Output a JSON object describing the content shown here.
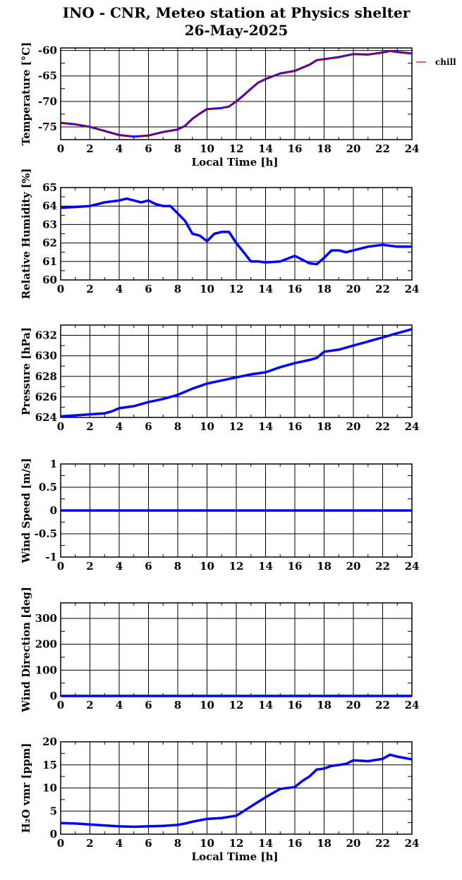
{
  "title_line1": "INO - CNR, Meteo station at Physics shelter",
  "title_line2": "26-May-2025",
  "colors": {
    "series": "#0000ff",
    "chill": "#cc0000",
    "grid": "#000000"
  },
  "chart_data": [
    {
      "id": "temperature",
      "type": "line",
      "ylabel": "Temperature [°C]",
      "xlabel": "Local Time [h]",
      "xlim": [
        0,
        24
      ],
      "ylim": [
        -77.5,
        -59.5
      ],
      "xticks": [
        "0",
        "2",
        "4",
        "6",
        "8",
        "10",
        "12",
        "14",
        "16",
        "18",
        "20",
        "22",
        "24"
      ],
      "yticks": [
        "-60",
        "-65",
        "-70",
        "-75"
      ],
      "ytick_values": [
        -60,
        -65,
        -70,
        -75
      ],
      "grid": true,
      "legend": "outside-right",
      "series": [
        {
          "name": "",
          "color": "#0000ff",
          "x": [
            0,
            1,
            2,
            3,
            4,
            5,
            6,
            7,
            8,
            8.5,
            9,
            9.5,
            10,
            11,
            11.5,
            12,
            12.5,
            13,
            13.5,
            14,
            15,
            16,
            17,
            17.5,
            18,
            19,
            20,
            21,
            22,
            22.5,
            23,
            24
          ],
          "values": [
            -74.2,
            -74.5,
            -75.0,
            -75.8,
            -76.6,
            -76.9,
            -76.7,
            -76.0,
            -75.5,
            -74.8,
            -73.4,
            -72.4,
            -71.5,
            -71.3,
            -71.0,
            -70.0,
            -68.8,
            -67.5,
            -66.3,
            -65.6,
            -64.5,
            -64.0,
            -62.8,
            -61.9,
            -61.7,
            -61.3,
            -60.7,
            -60.8,
            -60.4,
            -60.1,
            -60.3,
            -60.6
          ]
        },
        {
          "name": "chill",
          "color": "#cc0000",
          "x": [
            0,
            1,
            2,
            3,
            4,
            5,
            6,
            7,
            8,
            8.5,
            9,
            9.5,
            10,
            11,
            11.5,
            12,
            12.5,
            13,
            13.5,
            14,
            15,
            16,
            17,
            17.5,
            18,
            19,
            20,
            21,
            22,
            22.5,
            23,
            24
          ],
          "values": [
            -74.2,
            -74.5,
            -75.0,
            -75.8,
            -76.6,
            -76.9,
            -76.7,
            -76.0,
            -75.5,
            -74.8,
            -73.4,
            -72.4,
            -71.5,
            -71.3,
            -71.0,
            -70.0,
            -68.8,
            -67.5,
            -66.3,
            -65.6,
            -64.5,
            -64.0,
            -62.8,
            -61.9,
            -61.7,
            -61.3,
            -60.7,
            -60.8,
            -60.4,
            -60.1,
            -60.3,
            -60.6
          ]
        }
      ]
    },
    {
      "id": "humidity",
      "type": "line",
      "ylabel": "Relative Humidity [%]",
      "xlabel": "",
      "xlim": [
        0,
        24
      ],
      "ylim": [
        60,
        65
      ],
      "xticks": [
        "0",
        "2",
        "4",
        "6",
        "8",
        "10",
        "12",
        "14",
        "16",
        "18",
        "20",
        "22",
        "24"
      ],
      "yticks": [
        "65",
        "64",
        "63",
        "62",
        "61",
        "60"
      ],
      "ytick_values": [
        65,
        64,
        63,
        62,
        61,
        60
      ],
      "grid": true,
      "series": [
        {
          "name": "",
          "color": "#0000ff",
          "x": [
            0,
            1,
            2,
            3,
            4,
            4.5,
            5,
            5.5,
            6,
            6.5,
            7,
            7.5,
            8,
            8.5,
            9,
            9.5,
            10,
            10.5,
            11,
            11.5,
            12,
            12.5,
            13,
            13.5,
            14,
            15,
            16,
            17,
            17.5,
            18,
            18.5,
            19,
            19.5,
            20,
            21,
            22,
            23,
            24
          ],
          "values": [
            63.9,
            63.95,
            64.0,
            64.2,
            64.3,
            64.4,
            64.3,
            64.2,
            64.3,
            64.1,
            64.0,
            64.0,
            63.6,
            63.2,
            62.5,
            62.4,
            62.1,
            62.5,
            62.6,
            62.6,
            62.0,
            61.5,
            61.0,
            61.0,
            60.95,
            61.0,
            61.3,
            60.9,
            60.85,
            61.2,
            61.6,
            61.6,
            61.5,
            61.6,
            61.8,
            61.9,
            61.8,
            61.8
          ]
        }
      ]
    },
    {
      "id": "pressure",
      "type": "line",
      "ylabel": "Pressure [hPa]",
      "xlabel": "",
      "xlim": [
        0,
        24
      ],
      "ylim": [
        624,
        633
      ],
      "xticks": [
        "0",
        "2",
        "4",
        "6",
        "8",
        "10",
        "12",
        "14",
        "16",
        "18",
        "20",
        "22",
        "24"
      ],
      "yticks": [
        "632",
        "630",
        "628",
        "626",
        "624"
      ],
      "ytick_values": [
        632,
        630,
        628,
        626,
        624
      ],
      "grid": true,
      "series": [
        {
          "name": "",
          "color": "#0000ff",
          "x": [
            0,
            1,
            2,
            3,
            3.5,
            4,
            5,
            6,
            7,
            8,
            9,
            10,
            11,
            12,
            13,
            14,
            15,
            16,
            17,
            17.5,
            18,
            19,
            20,
            21,
            22,
            23,
            24
          ],
          "values": [
            624.1,
            624.2,
            624.3,
            624.4,
            624.6,
            624.9,
            625.1,
            625.5,
            625.8,
            626.2,
            626.8,
            627.3,
            627.6,
            627.9,
            628.2,
            628.4,
            628.9,
            629.3,
            629.6,
            629.8,
            630.4,
            630.6,
            631.0,
            631.4,
            631.8,
            632.2,
            632.6
          ]
        }
      ]
    },
    {
      "id": "wind_speed",
      "type": "line",
      "ylabel": "Wind Speed [m/s]",
      "xlabel": "",
      "xlim": [
        0,
        24
      ],
      "ylim": [
        -1,
        1
      ],
      "xticks": [
        "0",
        "2",
        "4",
        "6",
        "8",
        "10",
        "12",
        "14",
        "16",
        "18",
        "20",
        "22",
        "24"
      ],
      "yticks": [
        "1",
        "0.5",
        "0",
        "-0.5",
        "-1"
      ],
      "ytick_values": [
        1,
        0.5,
        0,
        -0.5,
        -1
      ],
      "grid": true,
      "series": [
        {
          "name": "",
          "color": "#0000ff",
          "x": [
            0,
            24
          ],
          "values": [
            0,
            0
          ]
        }
      ]
    },
    {
      "id": "wind_direction",
      "type": "line",
      "ylabel": "Wind Direction [deg]",
      "xlabel": "",
      "xlim": [
        0,
        24
      ],
      "ylim": [
        0,
        360
      ],
      "xticks": [
        "0",
        "2",
        "4",
        "6",
        "8",
        "10",
        "12",
        "14",
        "16",
        "18",
        "20",
        "22",
        "24"
      ],
      "yticks": [
        "300",
        "200",
        "100",
        "0"
      ],
      "ytick_values": [
        300,
        200,
        100,
        0
      ],
      "grid": true,
      "series": [
        {
          "name": "",
          "color": "#0000ff",
          "x": [
            0,
            24
          ],
          "values": [
            0,
            0
          ]
        }
      ]
    },
    {
      "id": "h2o_vmr",
      "type": "line",
      "ylabel": "H₂O vmr [ppm]",
      "xlabel": "Local Time [h]",
      "xlim": [
        0,
        24
      ],
      "ylim": [
        0,
        20
      ],
      "xticks": [
        "0",
        "2",
        "4",
        "6",
        "8",
        "10",
        "12",
        "14",
        "16",
        "18",
        "20",
        "22",
        "24"
      ],
      "yticks": [
        "20",
        "15",
        "10",
        "5",
        "0"
      ],
      "ytick_values": [
        20,
        15,
        10,
        5,
        0
      ],
      "grid": true,
      "series": [
        {
          "name": "",
          "color": "#0000ff",
          "x": [
            0,
            1,
            2,
            3,
            4,
            5,
            6,
            7,
            8,
            8.5,
            9,
            10,
            11,
            12,
            12.5,
            13,
            14,
            15,
            16,
            16.5,
            17,
            17.5,
            18,
            18.5,
            19,
            19.5,
            20,
            21,
            22,
            22.5,
            23,
            24
          ],
          "values": [
            2.4,
            2.3,
            2.1,
            1.9,
            1.7,
            1.6,
            1.7,
            1.8,
            2.0,
            2.3,
            2.7,
            3.3,
            3.5,
            4.0,
            5.0,
            6.0,
            8.0,
            9.8,
            10.2,
            11.5,
            12.5,
            14.0,
            14.2,
            14.8,
            15.0,
            15.2,
            16.0,
            15.8,
            16.3,
            17.2,
            16.8,
            16.2
          ]
        }
      ]
    }
  ]
}
